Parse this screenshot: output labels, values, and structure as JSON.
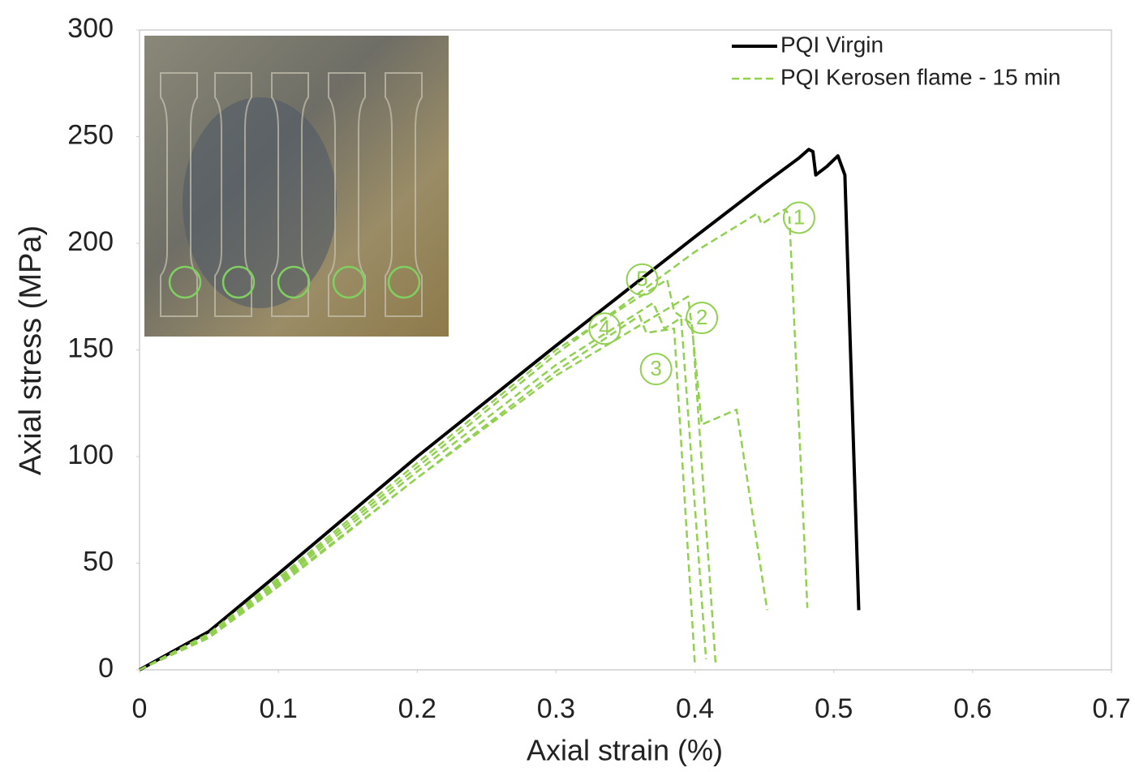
{
  "chart_data": {
    "type": "line",
    "xlabel": "Axial strain (%)",
    "ylabel": "Axial stress (MPa)",
    "xlim": [
      0,
      0.7
    ],
    "xticks": [
      0,
      0.1,
      0.2,
      0.3,
      0.4,
      0.5,
      0.6,
      0.7
    ],
    "ylim": [
      0,
      300
    ],
    "yticks": [
      0,
      50,
      100,
      150,
      200,
      250,
      300
    ],
    "grid": false,
    "legend": "top-right",
    "series": [
      {
        "name": "PQI Virgin",
        "color": "#000000",
        "dash": false,
        "x": [
          0,
          0.05,
          0.1,
          0.2,
          0.3,
          0.4,
          0.45,
          0.475,
          0.482,
          0.485,
          0.487,
          0.495,
          0.503,
          0.508,
          0.518
        ],
        "values": [
          0,
          18,
          45,
          100,
          152,
          203,
          228,
          240,
          244,
          243,
          232,
          236,
          241,
          232,
          28
        ]
      },
      {
        "name": "PQI Kerosen flame - 15 min",
        "color": "#92d050",
        "dash": true,
        "x": [
          0,
          0.05,
          0.1,
          0.2,
          0.3,
          0.4,
          0.445,
          0.448,
          0.465,
          0.468,
          0.481,
          null,
          0,
          0.05,
          0.1,
          0.2,
          0.3,
          0.38,
          0.385,
          0.398,
          0.415,
          null,
          0,
          0.05,
          0.1,
          0.2,
          0.3,
          0.395,
          0.398,
          0.405,
          0.43,
          0.452,
          null,
          0,
          0.05,
          0.1,
          0.2,
          0.3,
          0.37,
          0.378,
          0.39,
          0.408,
          null,
          0,
          0.05,
          0.1,
          0.2,
          0.3,
          0.36,
          0.365,
          0.385,
          0.4
        ],
        "values": [
          0,
          17,
          42,
          95,
          148,
          196,
          214,
          209,
          216,
          213,
          29,
          null,
          0,
          17,
          43,
          97,
          150,
          183,
          168,
          162,
          2,
          null,
          0,
          16,
          40,
          90,
          138,
          175,
          160,
          115,
          122,
          28,
          null,
          0,
          16,
          41,
          93,
          143,
          172,
          160,
          165,
          5,
          null,
          0,
          15,
          39,
          90,
          140,
          166,
          158,
          160,
          2
        ]
      }
    ],
    "annotations": [
      {
        "text": "1",
        "x": 0.475,
        "y": 212
      },
      {
        "text": "5",
        "x": 0.362,
        "y": 183
      },
      {
        "text": "2",
        "x": 0.405,
        "y": 165
      },
      {
        "text": "4",
        "x": 0.335,
        "y": 160
      },
      {
        "text": "3",
        "x": 0.372,
        "y": 141
      }
    ]
  }
}
